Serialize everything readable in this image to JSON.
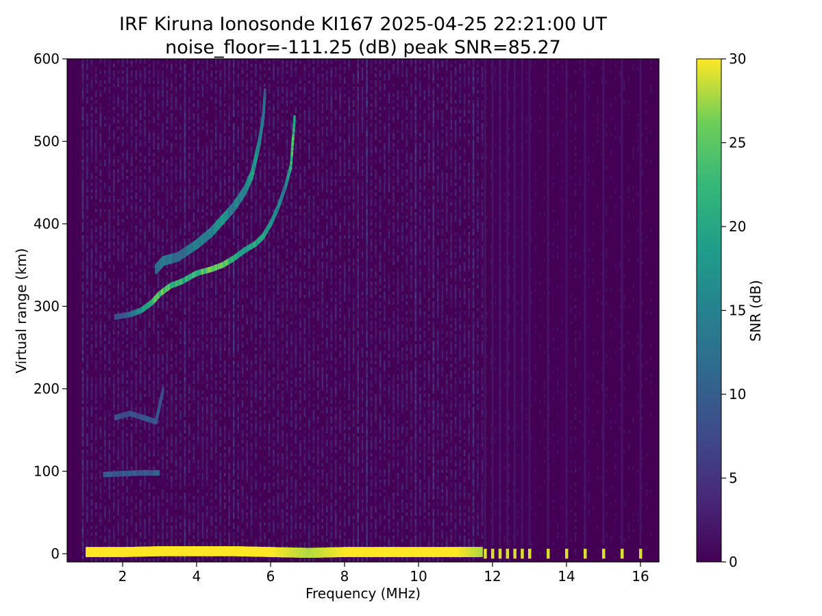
{
  "chart_data": {
    "type": "heatmap",
    "title": "IRF Kiruna Ionosonde KI167 2025-04-25 22:21:00  UT",
    "subtitle": "noise_floor=-111.25 (dB) peak SNR=85.27",
    "xlabel": "Frequency (MHz)",
    "ylabel": "Virtual range (km)",
    "xlim": [
      0.5,
      16.5
    ],
    "ylim": [
      -10,
      600
    ],
    "xticks": [
      2,
      4,
      6,
      8,
      10,
      12,
      14,
      16
    ],
    "yticks": [
      0,
      100,
      200,
      300,
      400,
      500,
      600
    ],
    "colorbar": {
      "label": "SNR (dB)",
      "range": [
        0,
        30
      ],
      "ticks": [
        0,
        5,
        10,
        15,
        20,
        25,
        30
      ],
      "colormap": "viridis"
    },
    "grid": false,
    "sweep_frequency_range_mhz": [
      0.9,
      16.3
    ],
    "echo_traces": [
      {
        "name": "ground-range",
        "points": [
          [
            1.0,
            2,
            30
          ],
          [
            2.0,
            2,
            30
          ],
          [
            3.0,
            3,
            30
          ],
          [
            4.0,
            3,
            30
          ],
          [
            5.0,
            3,
            30
          ],
          [
            6.0,
            2,
            30
          ],
          [
            7.0,
            1,
            28
          ],
          [
            8.0,
            2,
            30
          ],
          [
            9.0,
            2,
            30
          ],
          [
            10.0,
            2,
            30
          ],
          [
            11.0,
            2,
            30
          ],
          [
            11.7,
            2,
            28
          ]
        ]
      },
      {
        "name": "f-region-o-trace",
        "points": [
          [
            1.8,
            287,
            8
          ],
          [
            2.2,
            290,
            12
          ],
          [
            2.5,
            295,
            18
          ],
          [
            2.8,
            305,
            24
          ],
          [
            3.0,
            315,
            27
          ],
          [
            3.3,
            325,
            24
          ],
          [
            3.6,
            330,
            22
          ],
          [
            4.0,
            340,
            24
          ],
          [
            4.4,
            345,
            25
          ],
          [
            4.7,
            350,
            26
          ],
          [
            5.0,
            358,
            22
          ],
          [
            5.3,
            368,
            20
          ],
          [
            5.6,
            376,
            22
          ],
          [
            5.8,
            385,
            20
          ],
          [
            6.0,
            400,
            18
          ],
          [
            6.2,
            420,
            16
          ],
          [
            6.4,
            445,
            14
          ],
          [
            6.55,
            470,
            22
          ],
          [
            6.6,
            500,
            25
          ],
          [
            6.65,
            530,
            20
          ]
        ]
      },
      {
        "name": "f-region-x-trace",
        "points": [
          [
            2.9,
            345,
            12
          ],
          [
            3.1,
            355,
            14
          ],
          [
            3.5,
            360,
            12
          ],
          [
            4.0,
            375,
            14
          ],
          [
            4.4,
            390,
            16
          ],
          [
            4.7,
            405,
            18
          ],
          [
            5.0,
            420,
            15
          ],
          [
            5.3,
            440,
            16
          ],
          [
            5.5,
            460,
            20
          ],
          [
            5.6,
            480,
            18
          ],
          [
            5.7,
            500,
            16
          ],
          [
            5.8,
            530,
            14
          ],
          [
            5.85,
            560,
            12
          ]
        ]
      },
      {
        "name": "e-layer-echo",
        "points": [
          [
            1.5,
            96,
            10
          ],
          [
            2.0,
            97,
            10
          ],
          [
            2.5,
            98,
            9
          ],
          [
            3.0,
            98,
            11
          ]
        ]
      },
      {
        "name": "multi-hop-echo",
        "points": [
          [
            1.8,
            165,
            9
          ],
          [
            2.2,
            170,
            8
          ],
          [
            2.9,
            160,
            10
          ],
          [
            3.0,
            180,
            9
          ],
          [
            3.1,
            200,
            8
          ]
        ]
      }
    ],
    "discrete_channels_mhz": [
      11.8,
      12.0,
      12.2,
      12.4,
      12.6,
      12.8,
      13.0,
      13.5,
      14.0,
      14.5,
      15.0,
      15.5,
      16.0
    ]
  }
}
